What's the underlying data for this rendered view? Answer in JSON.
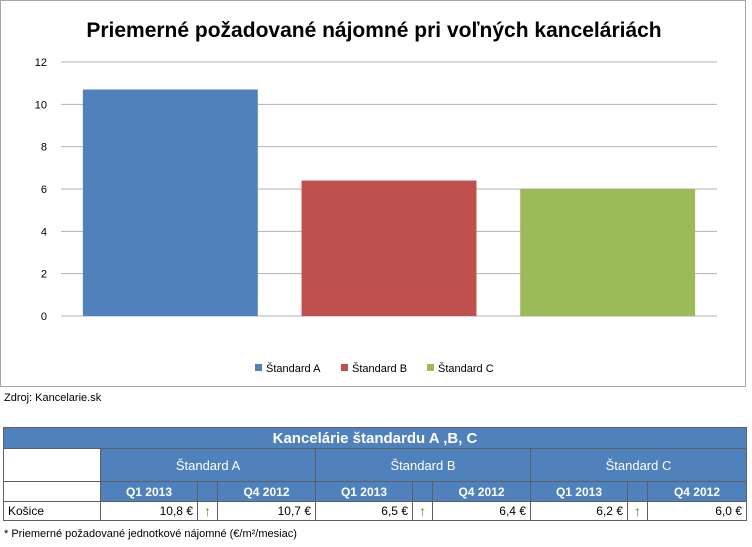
{
  "chart_data": {
    "type": "bar",
    "title": "Priemerné požadované nájomné pri voľných kanceláriách",
    "categories": [
      "Štandard A",
      "Štandard B",
      "Štandard C"
    ],
    "values": [
      10.7,
      6.4,
      6.0
    ],
    "colors": [
      "#4f81bd",
      "#c0504d",
      "#9bbb59"
    ],
    "ylim": [
      0,
      12
    ],
    "yticks": [
      0,
      2,
      4,
      6,
      8,
      10,
      12
    ],
    "grid": true,
    "legend": "bottom"
  },
  "source": "Zdroj: Kancelarie.sk",
  "table": {
    "title": "Kancelárie štandardu A ,B, C",
    "standards": [
      "Štandard A",
      "Štandard B",
      "Štandard C"
    ],
    "periods": [
      "Q1 2013",
      "Q4 2012"
    ],
    "rows": [
      {
        "city": "Košice",
        "values": [
          "10,8 €",
          "10,7 €",
          "6,5 €",
          "6,4 €",
          "6,2 €",
          "6,0 €"
        ],
        "arrows": [
          "↑",
          "↑",
          "↑"
        ]
      }
    ],
    "arrow_color": "#4e9a06"
  },
  "footnote": "* Priemerné požadované jednotkové nájomné (€/m²/mesiac)"
}
